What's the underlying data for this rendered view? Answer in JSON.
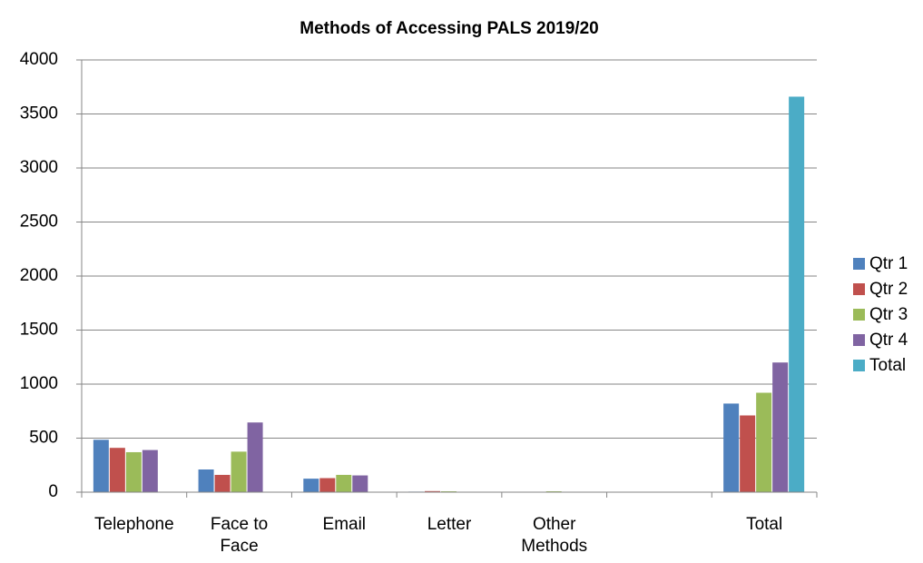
{
  "chart_data": {
    "type": "bar",
    "title": "Methods of Accessing PALS 2019/20",
    "categories": [
      "Telephone",
      "Face to Face",
      "Email",
      "Letter",
      "Other Methods",
      null,
      "Total"
    ],
    "series": [
      {
        "name": "Qtr 1",
        "color": "#4f81bd",
        "values": [
          485,
          210,
          125,
          5,
          2,
          null,
          820
        ]
      },
      {
        "name": "Qtr 2",
        "color": "#c0504d",
        "values": [
          410,
          160,
          130,
          10,
          3,
          null,
          710
        ]
      },
      {
        "name": "Qtr 3",
        "color": "#9bbb59",
        "values": [
          370,
          375,
          160,
          8,
          8,
          null,
          920
        ]
      },
      {
        "name": "Qtr 4",
        "color": "#8064a2",
        "values": [
          390,
          645,
          155,
          0,
          2,
          null,
          1200
        ]
      },
      {
        "name": "Total",
        "color": "#4bacc6",
        "values": [
          null,
          null,
          null,
          null,
          null,
          null,
          3660
        ]
      }
    ],
    "ylim": [
      0,
      4000
    ],
    "yticks": [
      0,
      500,
      1000,
      1500,
      2000,
      2500,
      3000,
      3500,
      4000
    ],
    "grid": true,
    "legend": "right"
  }
}
